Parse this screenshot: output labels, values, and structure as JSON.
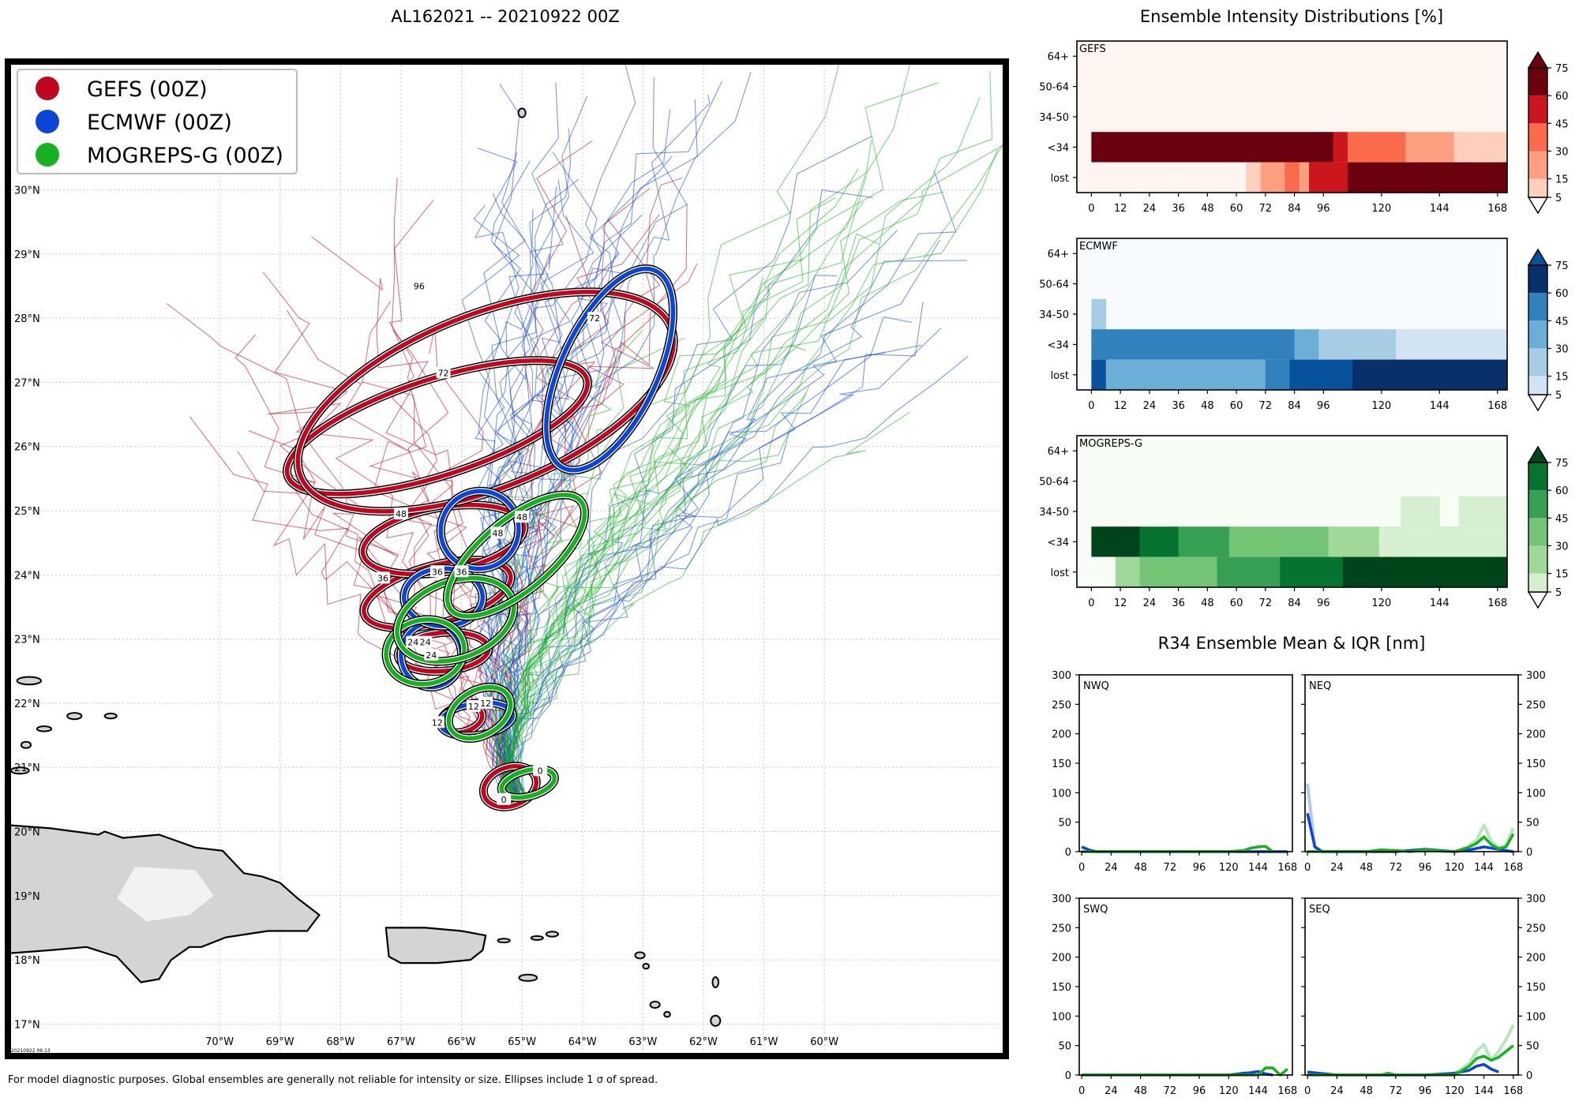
{
  "title": "AL162021 -- 20210922 00Z",
  "footer": "For model diagnostic purposes. Global ensembles are generally not reliable for intensity or size. Ellipses include 1 σ of spread.",
  "map_timestamp": "20210922 06:13",
  "colors": {
    "gefs": "#c0051f",
    "ecmwf": "#0a45d8",
    "mogreps": "#16b11f"
  },
  "chart_data": [
    {
      "type": "scatter",
      "name": "track-map",
      "title": "AL162021 -- 20210922 00Z",
      "xlim": [
        -73.5,
        -57.0
      ],
      "ylim": [
        16.5,
        32.0
      ],
      "x_ticks": [
        -70,
        -69,
        -68,
        -67,
        -66,
        -65,
        -64,
        -63,
        -62,
        -61,
        -60
      ],
      "x_tick_labels": [
        "70°W",
        "69°W",
        "68°W",
        "67°W",
        "66°W",
        "65°W",
        "64°W",
        "63°W",
        "62°W",
        "61°W",
        "60°W"
      ],
      "y_ticks": [
        17,
        18,
        19,
        20,
        21,
        22,
        23,
        24,
        25,
        26,
        27,
        28,
        29,
        30
      ],
      "y_tick_labels": [
        "17°N",
        "18°N",
        "19°N",
        "20°N",
        "21°N",
        "22°N",
        "23°N",
        "24°N",
        "25°N",
        "26°N",
        "27°N",
        "28°N",
        "29°N",
        "30°N"
      ],
      "grid": true,
      "legend_position": "top-left",
      "legend": [
        {
          "label": "GEFS (00Z)",
          "color": "#c0051f"
        },
        {
          "label": "ECMWF (00Z)",
          "color": "#0a45d8"
        },
        {
          "label": "MOGREPS-G (00Z)",
          "color": "#16b11f"
        }
      ],
      "ellipses": [
        {
          "model": "gefs",
          "hour": "0",
          "lon": -65.2,
          "lat": 20.7,
          "rx": 0.45,
          "ry": 0.3,
          "rot": -20,
          "lab": [
            -65.3,
            20.5
          ]
        },
        {
          "model": "gefs",
          "hour": "12",
          "lon": -66.0,
          "lat": 21.75,
          "rx": 0.35,
          "ry": 0.2,
          "rot": -15,
          "lab": [
            -66.4,
            21.7
          ]
        },
        {
          "model": "gefs",
          "hour": "24",
          "lon": -66.3,
          "lat": 22.8,
          "rx": 0.75,
          "ry": 0.3,
          "rot": -5,
          "lab": [
            -66.8,
            22.95
          ]
        },
        {
          "model": "gefs",
          "hour": "36",
          "lon": -66.4,
          "lat": 23.7,
          "rx": 1.25,
          "ry": 0.45,
          "rot": -15,
          "lab": [
            -67.3,
            23.95
          ]
        },
        {
          "model": "gefs",
          "hour": "48",
          "lon": -66.3,
          "lat": 24.55,
          "rx": 1.35,
          "ry": 0.5,
          "rot": -10,
          "lab": [
            -67.0,
            24.95
          ]
        },
        {
          "model": "gefs",
          "hour": "72",
          "lon": -66.4,
          "lat": 26.3,
          "rx": 2.6,
          "ry": 0.75,
          "rot": -18,
          "lab": [
            -66.3,
            27.15
          ]
        },
        {
          "model": "gefs",
          "hour": "96",
          "lon": -65.6,
          "lat": 26.7,
          "rx": 3.3,
          "ry": 1.35,
          "rot": -22,
          "lab": [
            -66.7,
            28.5
          ]
        },
        {
          "model": "ecmwf",
          "hour": "12",
          "lon": -65.75,
          "lat": 21.75,
          "rx": 0.6,
          "ry": 0.25,
          "rot": -8,
          "lab": [
            -65.8,
            21.95
          ]
        },
        {
          "model": "ecmwf",
          "hour": "24",
          "lon": -66.5,
          "lat": 22.75,
          "rx": 0.5,
          "ry": 0.5,
          "rot": 0,
          "lab": [
            -66.5,
            22.75
          ]
        },
        {
          "model": "ecmwf",
          "hour": "36",
          "lon": -66.3,
          "lat": 23.65,
          "rx": 0.65,
          "ry": 0.45,
          "rot": 0,
          "lab": [
            -66.4,
            24.05
          ]
        },
        {
          "model": "ecmwf",
          "hour": "48",
          "lon": -65.7,
          "lat": 24.7,
          "rx": 0.65,
          "ry": 0.6,
          "rot": -40,
          "lab": [
            -65.4,
            24.65
          ]
        },
        {
          "model": "ecmwf",
          "hour": "72",
          "lon": -63.55,
          "lat": 27.2,
          "rx": 1.8,
          "ry": 0.75,
          "rot": -65,
          "lab": [
            -63.8,
            28.0
          ]
        },
        {
          "model": "mogreps",
          "hour": "0",
          "lon": -64.9,
          "lat": 20.75,
          "rx": 0.45,
          "ry": 0.2,
          "rot": -15,
          "lab": [
            -64.7,
            20.95
          ]
        },
        {
          "model": "mogreps",
          "hour": "12",
          "lon": -65.7,
          "lat": 21.85,
          "rx": 0.55,
          "ry": 0.35,
          "rot": -30,
          "lab": [
            -65.6,
            22.0
          ]
        },
        {
          "model": "mogreps",
          "hour": "24",
          "lon": -66.6,
          "lat": 22.8,
          "rx": 0.65,
          "ry": 0.5,
          "rot": -10,
          "lab": [
            -66.6,
            22.95
          ]
        },
        {
          "model": "mogreps",
          "hour": "36",
          "lon": -66.1,
          "lat": 23.3,
          "rx": 1.0,
          "ry": 0.6,
          "rot": -20,
          "lab": [
            -66.0,
            24.05
          ]
        },
        {
          "model": "mogreps",
          "hour": "48",
          "lon": -65.1,
          "lat": 24.3,
          "rx": 1.4,
          "ry": 0.55,
          "rot": -40,
          "lab": [
            -65.0,
            24.9
          ]
        }
      ]
    },
    {
      "type": "heatmap",
      "name": "ensemble-intensity",
      "title": "Ensemble Intensity Distributions [%]",
      "x_ticks": [
        0,
        12,
        24,
        36,
        48,
        60,
        72,
        84,
        96,
        120,
        144,
        168
      ],
      "rows": [
        "64+",
        "50-64",
        "34-50",
        "<34",
        "lost"
      ],
      "colorbar_ticks": [
        5,
        15,
        30,
        45,
        60,
        75
      ],
      "panels": [
        {
          "name": "GEFS",
          "cmap": "Reds",
          "colors": [
            "#fff5f0",
            "#fdd0bb",
            "#fc9f80",
            "#fb6a4a",
            "#cc161d",
            "#6b010e"
          ],
          "cells": {
            "<34": [
              [
                0,
                100,
                5
              ],
              [
                100,
                106,
                4
              ],
              [
                106,
                130,
                3
              ],
              [
                130,
                150,
                2
              ],
              [
                150,
                172,
                1
              ]
            ],
            "lost": [
              [
                0,
                64,
                0
              ],
              [
                64,
                70,
                1
              ],
              [
                70,
                80,
                2
              ],
              [
                80,
                86,
                3
              ],
              [
                86,
                90,
                2
              ],
              [
                90,
                106,
                4
              ],
              [
                106,
                172,
                5
              ]
            ]
          }
        },
        {
          "name": "ECMWF",
          "cmap": "Blues",
          "colors": [
            "#f7fbff",
            "#d2e3f3",
            "#a6cde3",
            "#6baed6",
            "#3181bd",
            "#08306b",
            "#08519c"
          ],
          "cells": {
            "34-50": [
              [
                0,
                6,
                2
              ]
            ],
            "<34": [
              [
                0,
                84,
                4
              ],
              [
                84,
                94,
                3
              ],
              [
                94,
                126,
                2
              ],
              [
                126,
                172,
                1
              ]
            ],
            "lost": [
              [
                0,
                6,
                6
              ],
              [
                6,
                72,
                3
              ],
              [
                72,
                82,
                4
              ],
              [
                82,
                108,
                6
              ],
              [
                108,
                172,
                5
              ]
            ]
          }
        },
        {
          "name": "MOGREPS-G",
          "cmap": "Greens",
          "colors": [
            "#f7fcf5",
            "#d6efd0",
            "#9fd898",
            "#74c476",
            "#37a055",
            "#077331",
            "#00441b"
          ],
          "cells": {
            "34-50": [
              [
                128,
                144,
                1
              ],
              [
                152,
                172,
                1
              ]
            ],
            "<34": [
              [
                0,
                20,
                6
              ],
              [
                20,
                36,
                5
              ],
              [
                36,
                57,
                4
              ],
              [
                57,
                98,
                3
              ],
              [
                98,
                119,
                2
              ],
              [
                119,
                172,
                1
              ]
            ],
            "lost": [
              [
                0,
                10,
                0
              ],
              [
                10,
                20,
                2
              ],
              [
                20,
                52,
                3
              ],
              [
                52,
                78,
                4
              ],
              [
                78,
                104,
                5
              ],
              [
                104,
                172,
                6
              ]
            ]
          }
        }
      ]
    },
    {
      "type": "line",
      "name": "r34",
      "title": "R34 Ensemble Mean & IQR [nm]",
      "ylim": [
        0,
        300
      ],
      "xlim": [
        -2,
        172
      ],
      "x_ticks": [
        0,
        24,
        48,
        72,
        96,
        120,
        144,
        168
      ],
      "y_ticks": [
        0,
        50,
        100,
        150,
        200,
        250,
        300
      ],
      "panels": [
        {
          "name": "NWQ",
          "series": [
            {
              "model": "ecmwf",
              "x": [
                0,
                6,
                12,
                24,
                48,
                72,
                96,
                120,
                144,
                168
              ],
              "y": [
                8,
                3,
                0,
                0,
                0,
                0,
                0,
                0,
                0,
                0
              ]
            },
            {
              "model": "mogreps",
              "x": [
                0,
                24,
                48,
                72,
                96,
                120,
                132,
                138,
                144,
                150,
                156
              ],
              "y": [
                0,
                0,
                0,
                0,
                0,
                0,
                2,
                6,
                8,
                9,
                0
              ]
            }
          ]
        },
        {
          "name": "NEQ",
          "series": [
            {
              "model": "ecmwf_iqr",
              "x": [
                0,
                6,
                12,
                24,
                48
              ],
              "y": [
                115,
                8,
                0,
                0,
                0
              ]
            },
            {
              "model": "ecmwf",
              "x": [
                0,
                6,
                12,
                24,
                48,
                72,
                96,
                120,
                132,
                144,
                168
              ],
              "y": [
                65,
                8,
                0,
                0,
                0,
                0,
                4,
                0,
                3,
                8,
                0
              ]
            },
            {
              "model": "mogreps_iqr",
              "x": [
                132,
                138,
                144,
                150,
                156,
                162,
                168
              ],
              "y": [
                10,
                20,
                45,
                18,
                6,
                12,
                40
              ]
            },
            {
              "model": "mogreps",
              "x": [
                0,
                12,
                24,
                48,
                60,
                72,
                84,
                96,
                108,
                120,
                132,
                138,
                144,
                150,
                156,
                162,
                168
              ],
              "y": [
                0,
                0,
                0,
                0,
                3,
                2,
                0,
                3,
                1,
                0,
                8,
                14,
                25,
                12,
                5,
                8,
                30
              ]
            }
          ]
        },
        {
          "name": "SWQ",
          "series": [
            {
              "model": "ecmwf",
              "x": [
                0,
                24,
                48,
                72,
                96,
                120,
                132,
                138,
                144,
                150,
                156
              ],
              "y": [
                0,
                0,
                0,
                0,
                0,
                0,
                3,
                4,
                6,
                2,
                0
              ]
            },
            {
              "model": "mogreps",
              "x": [
                0,
                24,
                48,
                72,
                96,
                120,
                144,
                150,
                156,
                162,
                168
              ],
              "y": [
                0,
                0,
                0,
                0,
                0,
                0,
                0,
                12,
                12,
                0,
                10
              ]
            }
          ]
        },
        {
          "name": "SEQ",
          "series": [
            {
              "model": "ecmwf",
              "x": [
                0,
                24,
                60,
                72,
                96,
                120,
                132,
                138,
                144,
                150,
                156
              ],
              "y": [
                5,
                0,
                0,
                0,
                0,
                3,
                8,
                15,
                18,
                10,
                5
              ]
            },
            {
              "model": "mogreps_iqr",
              "x": [
                120,
                132,
                138,
                144,
                150,
                156,
                162,
                168
              ],
              "y": [
                2,
                20,
                40,
                52,
                25,
                40,
                60,
                85
              ]
            },
            {
              "model": "mogreps",
              "x": [
                0,
                24,
                60,
                66,
                72,
                96,
                120,
                132,
                138,
                144,
                150,
                156,
                162,
                168
              ],
              "y": [
                0,
                0,
                0,
                3,
                0,
                0,
                0,
                15,
                28,
                32,
                25,
                30,
                40,
                50
              ]
            }
          ]
        }
      ]
    }
  ]
}
